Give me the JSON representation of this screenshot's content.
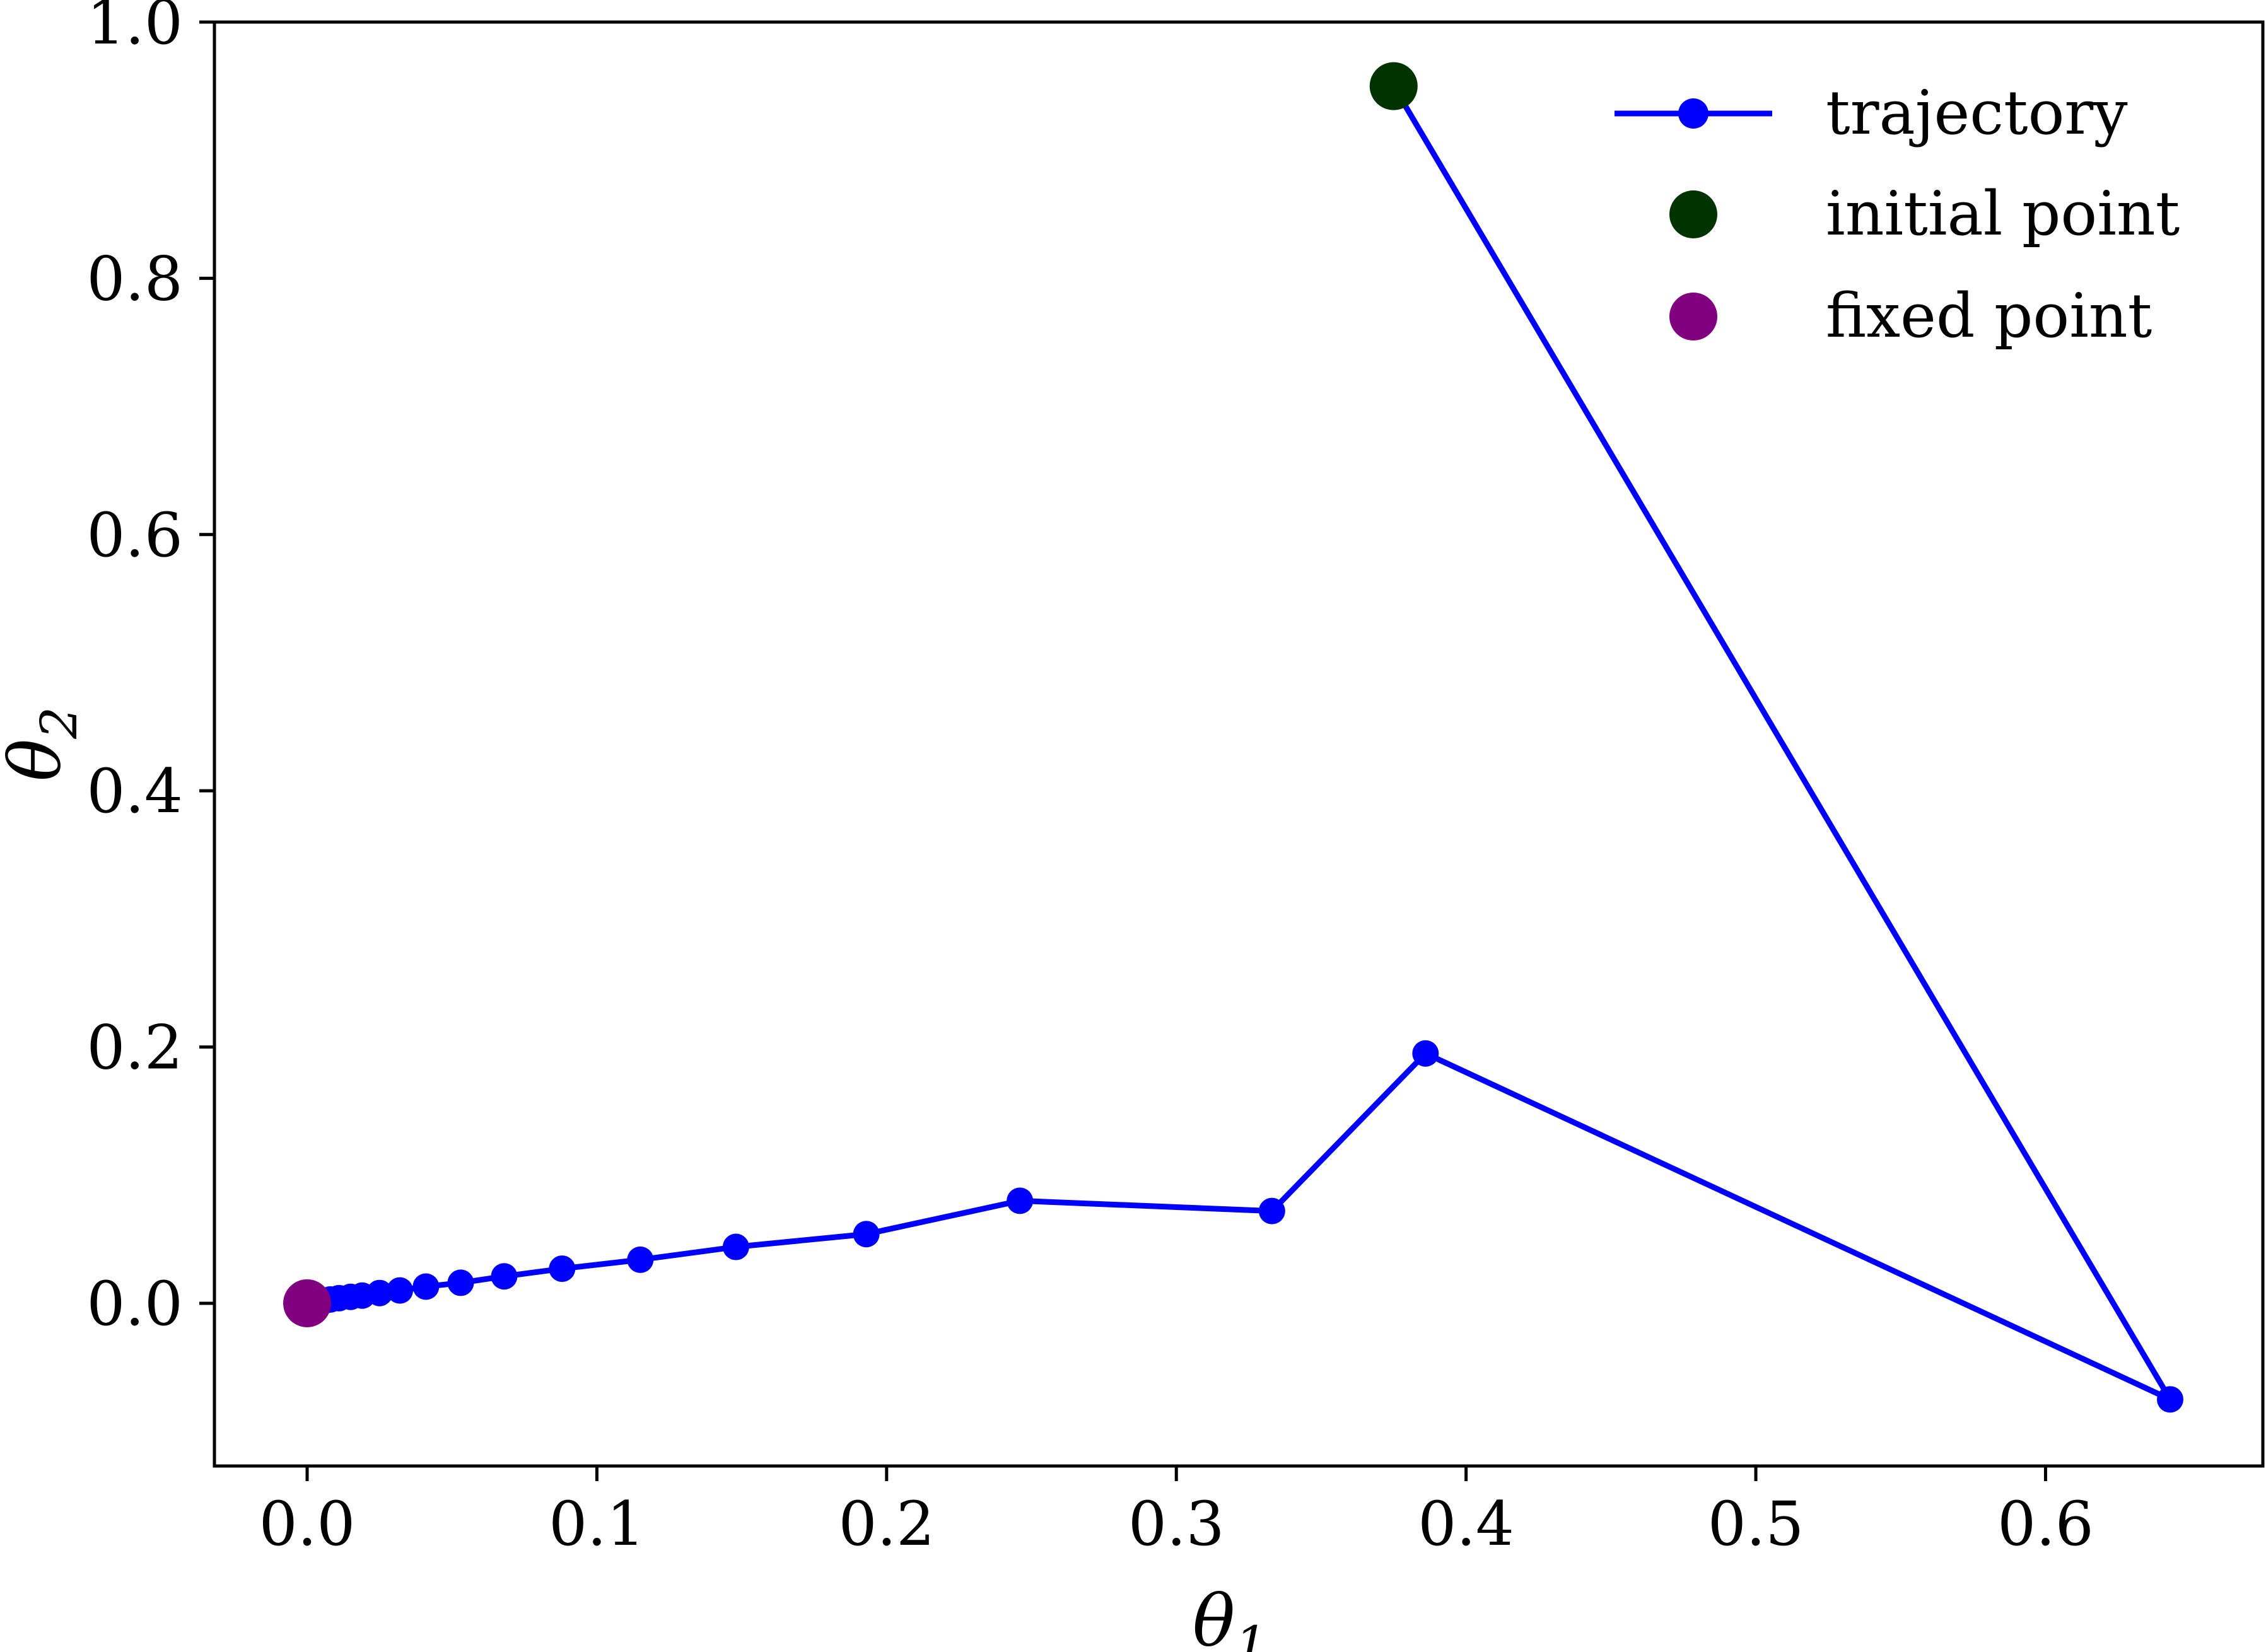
{
  "chart_data": {
    "type": "line",
    "title": "",
    "xlabel": "θ",
    "xlabel_sub": "1",
    "ylabel": "θ",
    "ylabel_sub": "2",
    "xlim": [
      -0.032,
      0.675
    ],
    "ylim": [
      -0.127,
      1.0
    ],
    "xticks": [
      0.0,
      0.1,
      0.2,
      0.3,
      0.4,
      0.5,
      0.6
    ],
    "xtick_labels": [
      "0.0",
      "0.1",
      "0.2",
      "0.3",
      "0.4",
      "0.5",
      "0.6"
    ],
    "yticks": [
      0.0,
      0.2,
      0.4,
      0.6,
      0.8,
      1.0
    ],
    "ytick_labels": [
      "0.0",
      "0.2",
      "0.4",
      "0.6",
      "0.8",
      "1.0"
    ],
    "grid": false,
    "legend_position": "top-right",
    "series": [
      {
        "name": "trajectory",
        "color": "#0000ff",
        "marker": "circle",
        "x": [
          0.375,
          0.643,
          0.386,
          0.333,
          0.246,
          0.193,
          0.148,
          0.115,
          0.088,
          0.068,
          0.053,
          0.041,
          0.032,
          0.025,
          0.019,
          0.015,
          0.011,
          0.008,
          0.006,
          0.004,
          0.002,
          0.0
        ],
        "y": [
          0.95,
          -0.075,
          0.195,
          0.072,
          0.08,
          0.054,
          0.044,
          0.034,
          0.027,
          0.021,
          0.016,
          0.013,
          0.01,
          0.008,
          0.006,
          0.005,
          0.004,
          0.003,
          0.002,
          0.0015,
          0.001,
          0.0
        ]
      },
      {
        "name": "initial point",
        "color": "#003300",
        "marker": "circle",
        "x": [
          0.375
        ],
        "y": [
          0.95
        ]
      },
      {
        "name": "fixed point",
        "color": "#800080",
        "marker": "circle",
        "x": [
          0.0
        ],
        "y": [
          0.0
        ]
      }
    ]
  }
}
